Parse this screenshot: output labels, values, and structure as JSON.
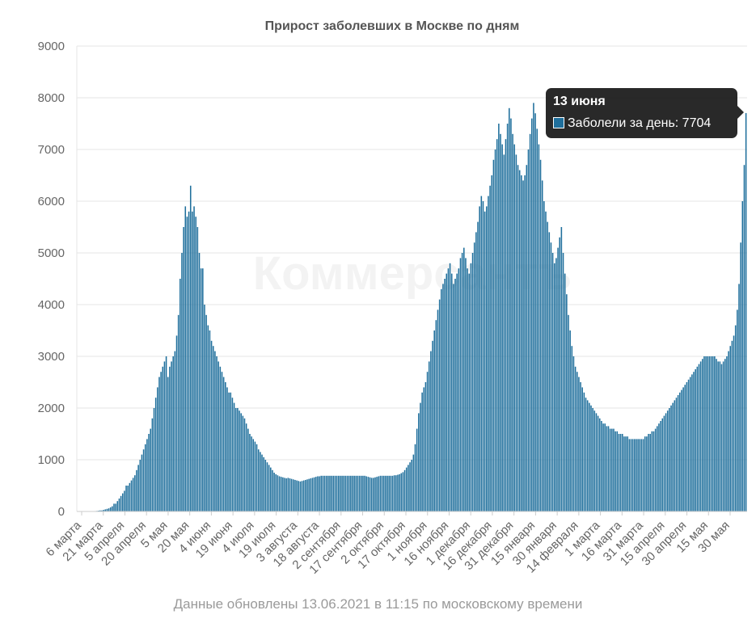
{
  "chart_data": {
    "type": "bar",
    "title": "Прирост заболевших в Москве по дням",
    "ylim": [
      0,
      9000
    ],
    "y_ticks": [
      0,
      1000,
      2000,
      3000,
      4000,
      5000,
      6000,
      7000,
      8000,
      9000
    ],
    "x_tick_labels": [
      "6 марта",
      "21 марта",
      "5 апреля",
      "20 апреля",
      "5 мая",
      "20 мая",
      "4 июня",
      "19 июня",
      "4 июля",
      "19 июля",
      "3 августа",
      "18 августа",
      "2 сентября",
      "17 сентября",
      "2 октября",
      "17 октября",
      "1 ноября",
      "16 ноября",
      "1 декабря",
      "16 декабря",
      "31 декабря",
      "15 января",
      "30 января",
      "14 февраля",
      "1 марта",
      "16 марта",
      "31 марта",
      "15 апреля",
      "30 апреля",
      "15 мая",
      "30 мая"
    ],
    "bar_color": "#1f6f9c",
    "grid": true,
    "watermark": "Коммерсантъ",
    "series": [
      {
        "name": "Заболели за день",
        "values": [
          2,
          2,
          2,
          2,
          2,
          2,
          3,
          3,
          5,
          6,
          8,
          10,
          15,
          20,
          20,
          30,
          40,
          50,
          60,
          80,
          100,
          150,
          150,
          200,
          250,
          300,
          350,
          400,
          500,
          500,
          550,
          600,
          650,
          700,
          800,
          900,
          1000,
          1100,
          1200,
          1300,
          1400,
          1500,
          1600,
          1800,
          2000,
          2200,
          2400,
          2600,
          2700,
          2800,
          2900,
          3000,
          2600,
          2800,
          2900,
          3000,
          3100,
          3400,
          3800,
          4500,
          5000,
          5500,
          5900,
          5700,
          5800,
          6300,
          5800,
          5900,
          5700,
          5500,
          5000,
          4700,
          4700,
          4000,
          3800,
          3600,
          3500,
          3300,
          3200,
          3100,
          3000,
          2900,
          2800,
          2700,
          2600,
          2500,
          2400,
          2300,
          2300,
          2200,
          2100,
          2000,
          2000,
          1950,
          1900,
          1850,
          1800,
          1700,
          1600,
          1500,
          1450,
          1400,
          1350,
          1300,
          1200,
          1150,
          1100,
          1050,
          1000,
          950,
          900,
          850,
          800,
          750,
          720,
          700,
          680,
          670,
          660,
          650,
          640,
          650,
          640,
          630,
          620,
          610,
          600,
          590,
          580,
          590,
          600,
          610,
          620,
          630,
          640,
          650,
          660,
          670,
          680,
          680,
          690,
          690,
          690,
          690,
          690,
          690,
          690,
          690,
          690,
          690,
          690,
          690,
          690,
          690,
          690,
          690,
          690,
          690,
          690,
          690,
          690,
          690,
          690,
          690,
          690,
          690,
          680,
          670,
          660,
          650,
          650,
          660,
          670,
          680,
          690,
          690,
          690,
          690,
          690,
          690,
          690,
          690,
          700,
          700,
          710,
          720,
          740,
          760,
          800,
          850,
          900,
          950,
          1000,
          1100,
          1300,
          1600,
          1900,
          2100,
          2300,
          2400,
          2500,
          2700,
          2900,
          3100,
          3300,
          3500,
          3700,
          3900,
          4100,
          4300,
          4400,
          4500,
          4600,
          4700,
          4800,
          4600,
          4400,
          4500,
          4600,
          4700,
          4900,
          5000,
          5100,
          4900,
          4700,
          4600,
          4800,
          5000,
          5200,
          5400,
          5600,
          5900,
          6100,
          6000,
          5800,
          5900,
          6100,
          6300,
          6500,
          6800,
          7000,
          7200,
          7500,
          7300,
          7100,
          6900,
          7200,
          7500,
          7800,
          7600,
          7300,
          7100,
          6900,
          6700,
          6600,
          6500,
          6400,
          6500,
          6700,
          7000,
          7300,
          7600,
          7900,
          7700,
          7400,
          7100,
          6800,
          6400,
          6000,
          5800,
          5600,
          5400,
          5200,
          5000,
          4800,
          4900,
          5100,
          5300,
          5500,
          5000,
          4600,
          4200,
          3800,
          3500,
          3200,
          3000,
          2800,
          2700,
          2600,
          2500,
          2400,
          2300,
          2200,
          2150,
          2100,
          2050,
          2000,
          1950,
          1900,
          1850,
          1800,
          1750,
          1700,
          1700,
          1650,
          1650,
          1600,
          1600,
          1600,
          1550,
          1550,
          1500,
          1500,
          1500,
          1450,
          1450,
          1450,
          1400,
          1400,
          1400,
          1400,
          1400,
          1400,
          1400,
          1400,
          1400,
          1450,
          1450,
          1500,
          1500,
          1550,
          1550,
          1600,
          1650,
          1700,
          1750,
          1800,
          1850,
          1900,
          1950,
          2000,
          2050,
          2100,
          2150,
          2200,
          2250,
          2300,
          2350,
          2400,
          2450,
          2500,
          2550,
          2600,
          2650,
          2700,
          2750,
          2800,
          2850,
          2900,
          2950,
          3000,
          3000,
          3000,
          3000,
          3000,
          3000,
          3000,
          2950,
          2900,
          2900,
          2850,
          2900,
          2950,
          3000,
          3100,
          3200,
          3300,
          3400,
          3600,
          3900,
          4400,
          5200,
          6000,
          6700,
          7704
        ]
      }
    ]
  },
  "tooltip": {
    "date": "13 июня",
    "label": "Заболели за день: 7704"
  },
  "footer": {
    "text": "Данные обновлены 13.06.2021 в 11:15 по московскому времени"
  }
}
